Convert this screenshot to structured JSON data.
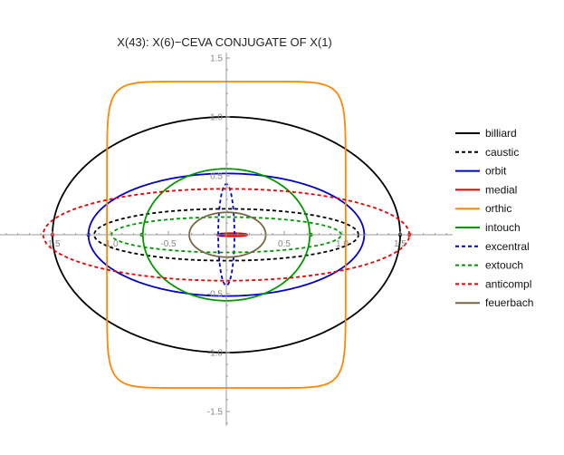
{
  "chart_data": {
    "type": "line",
    "title": "X(43): X(6)−CEVA CONJUGATE OF X(1)",
    "xlabel": "",
    "ylabel": "",
    "xlim": [
      -1.6,
      1.6
    ],
    "ylim": [
      -1.6,
      1.6
    ],
    "xticks": [
      -1.5,
      -1.0,
      -0.5,
      0.5,
      1.0,
      1.5
    ],
    "xtick_labels": [
      "-1.5",
      "-1.0",
      "-0.5",
      "0.5",
      "1.0",
      "1.5"
    ],
    "yticks": [
      -1.5,
      -1.0,
      -0.5,
      0.5,
      1.0,
      1.5
    ],
    "ytick_labels": [
      "-1.5",
      "-1.0",
      "-0.5",
      "0.5",
      "1.0",
      "1.5"
    ],
    "grid": false,
    "legend_position": "right",
    "series": [
      {
        "name": "billiard",
        "shape": "ellipse",
        "center": [
          0,
          0
        ],
        "a": 1.5,
        "b": 1.0,
        "color": "#000000",
        "dash": "solid"
      },
      {
        "name": "caustic",
        "shape": "ellipse",
        "center": [
          0,
          0
        ],
        "a": 1.14,
        "b": 0.22,
        "color": "#000000",
        "dash": "dashed"
      },
      {
        "name": "orbit",
        "shape": "ellipse",
        "center": [
          0,
          0
        ],
        "a": 1.19,
        "b": 0.52,
        "color": "#0000cc",
        "dash": "solid"
      },
      {
        "name": "medial",
        "shape": "ellipse",
        "center": [
          0.05,
          0
        ],
        "a": 0.13,
        "b": 0.012,
        "color": "#dd0000",
        "dash": "solid"
      },
      {
        "name": "orthic",
        "shape": "superellipse",
        "center": [
          0,
          0
        ],
        "a": 1.03,
        "b": 1.3,
        "exponent": 9,
        "color": "#ff8800",
        "dash": "solid"
      },
      {
        "name": "intouch",
        "shape": "ellipse",
        "center": [
          0,
          0
        ],
        "a": 0.72,
        "b": 0.56,
        "color": "#009900",
        "dash": "solid"
      },
      {
        "name": "excentral",
        "shape": "ellipse",
        "center": [
          0,
          0
        ],
        "a": 0.07,
        "b": 0.43,
        "color": "#0000cc",
        "dash": "dashed"
      },
      {
        "name": "extouch",
        "shape": "ellipse",
        "center": [
          0,
          0
        ],
        "a": 0.99,
        "b": 0.15,
        "color": "#009900",
        "dash": "dashed"
      },
      {
        "name": "anticompl",
        "shape": "ellipse",
        "center": [
          0,
          0
        ],
        "a": 1.58,
        "b": 0.39,
        "color": "#ee0000",
        "dash": "dashed"
      },
      {
        "name": "feuerbach",
        "shape": "ellipse",
        "center": [
          0.01,
          0
        ],
        "a": 0.33,
        "b": 0.19,
        "color": "#776644",
        "dash": "solid"
      }
    ],
    "markers": [
      {
        "x": 1.5,
        "y": 0,
        "color": "#000000"
      },
      {
        "x": -1.5,
        "y": 0,
        "color": "#dd0000"
      },
      {
        "x": 1.58,
        "y": 0,
        "color": "#ee0000"
      },
      {
        "x": -1.19,
        "y": 0,
        "color": "#0000cc"
      },
      {
        "x": -0.73,
        "y": 0,
        "color": "#009900"
      },
      {
        "x": 0.73,
        "y": 0,
        "color": "#009900"
      },
      {
        "x": -0.04,
        "y": 0,
        "color": "#0000cc"
      }
    ]
  }
}
